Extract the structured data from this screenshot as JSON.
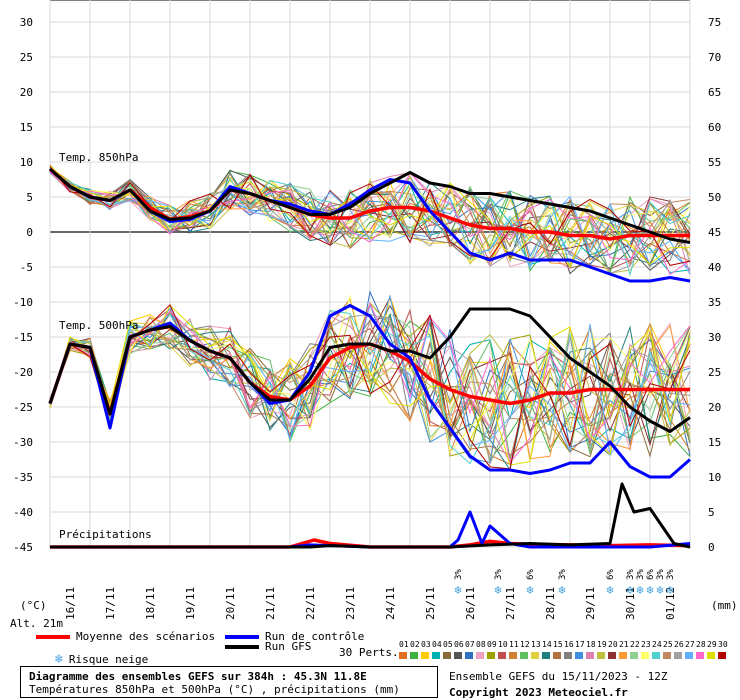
{
  "chart_data": {
    "type": "line",
    "title": "Diagramme des ensembles GEFS sur 384h : 45.3N 11.8E",
    "subtitle": "Températures 850hPa et 500hPa (°C) , précipitations (mm)",
    "altitude": "Alt. 21m",
    "left_unit": "(°C)",
    "right_unit": "(mm)",
    "left_ticks": [
      30,
      25,
      20,
      15,
      10,
      5,
      0,
      -5,
      -10,
      -15,
      -20,
      -25,
      -30,
      -35,
      -40,
      -45
    ],
    "right_ticks": [
      75,
      70,
      65,
      60,
      55,
      50,
      45,
      40,
      35,
      30,
      25,
      20,
      15,
      10,
      5,
      0
    ],
    "ylim": [
      -45,
      30
    ],
    "x_labels": [
      "16/11",
      "17/11",
      "18/11",
      "19/11",
      "20/11",
      "21/11",
      "22/11",
      "23/11",
      "24/11",
      "25/11",
      "26/11",
      "27/11",
      "28/11",
      "29/11",
      "30/11",
      "01/12"
    ],
    "panels": {
      "t850": "Temp. 850hPa",
      "t500": "Temp. 500hPa",
      "precip": "Précipitations"
    },
    "series": [
      {
        "name": "Moyenne des scénarios",
        "color": "#ff0000",
        "panel": "t850",
        "x": [
          0,
          0.5,
          1,
          1.5,
          2,
          2.5,
          3,
          3.5,
          4,
          4.5,
          5,
          5.5,
          6,
          6.5,
          7,
          7.5,
          8,
          8.5,
          9,
          9.5,
          10,
          10.5,
          11,
          11.5,
          12,
          12.5,
          13,
          13.5,
          14,
          14.5,
          15,
          15.5,
          16
        ],
        "values": [
          9,
          6.5,
          5,
          4.5,
          6,
          3.5,
          1.8,
          2.2,
          3,
          6,
          5.5,
          4.5,
          3.5,
          2.5,
          2,
          2,
          3,
          3.5,
          3.5,
          3,
          2,
          1,
          0.5,
          0.5,
          0,
          0,
          -0.5,
          -0.5,
          -1,
          -0.5,
          -0.5,
          -0.5,
          -0.5
        ]
      },
      {
        "name": "Run de contrôle",
        "color": "#0000ff",
        "panel": "t850",
        "x": [
          0,
          0.5,
          1,
          1.5,
          2,
          2.5,
          3,
          3.5,
          4,
          4.5,
          5,
          5.5,
          6,
          6.5,
          7,
          7.5,
          8,
          8.5,
          9,
          9.5,
          10,
          10.5,
          11,
          11.5,
          12,
          12.5,
          13,
          13.5,
          14,
          14.5,
          15,
          15.5,
          16
        ],
        "values": [
          9,
          6.5,
          5,
          4.5,
          6,
          3,
          1.5,
          1.8,
          3,
          6.5,
          5.5,
          4.5,
          4,
          3,
          2.5,
          4,
          6,
          7.5,
          7,
          3,
          0,
          -3,
          -4,
          -3,
          -4,
          -4,
          -4,
          -5,
          -6,
          -7,
          -7,
          -6.5,
          -7
        ]
      },
      {
        "name": "Run GFS",
        "color": "#000000",
        "panel": "t850",
        "x": [
          0,
          0.5,
          1,
          1.5,
          2,
          2.5,
          3,
          3.5,
          4,
          4.5,
          5,
          5.5,
          6,
          6.5,
          7,
          7.5,
          8,
          8.5,
          9,
          9.5,
          10,
          10.5,
          11,
          11.5,
          12,
          12.5,
          13,
          13.5,
          14,
          14.5,
          15,
          15.5,
          16
        ],
        "values": [
          9,
          6.5,
          5,
          4.5,
          6,
          3,
          1.8,
          2,
          3,
          6,
          5.5,
          4.5,
          3.5,
          2.5,
          2.5,
          3.5,
          5.5,
          7,
          8.5,
          7,
          6.5,
          5.5,
          5.5,
          5,
          4.5,
          4,
          3.5,
          3,
          2,
          1,
          0,
          -1,
          -1.5
        ]
      },
      {
        "name": "Moyenne des scénarios",
        "color": "#ff0000",
        "panel": "t500",
        "x": [
          0,
          0.5,
          1,
          1.5,
          2,
          2.5,
          3,
          3.5,
          4,
          4.5,
          5,
          5.5,
          6,
          6.5,
          7,
          7.5,
          8,
          8.5,
          9,
          9.5,
          10,
          10.5,
          11,
          11.5,
          12,
          12.5,
          13,
          13.5,
          14,
          14.5,
          15,
          15.5,
          16
        ],
        "values": [
          -24.5,
          -16,
          -16.5,
          -26,
          -15,
          -14,
          -13.5,
          -15.5,
          -17,
          -18,
          -21.5,
          -23.5,
          -24,
          -22,
          -18,
          -16.5,
          -16,
          -17,
          -18.5,
          -21,
          -22.5,
          -23.5,
          -24,
          -24.5,
          -24,
          -23,
          -23,
          -22.5,
          -22.5,
          -22.5,
          -22.5,
          -22.5,
          -22.5
        ]
      },
      {
        "name": "Run de contrôle",
        "color": "#0000ff",
        "panel": "t500",
        "x": [
          0,
          0.5,
          1,
          1.5,
          2,
          2.5,
          3,
          3.5,
          4,
          4.5,
          5,
          5.5,
          6,
          6.5,
          7,
          7.5,
          8,
          8.5,
          9,
          9.5,
          10,
          10.5,
          11,
          11.5,
          12,
          12.5,
          13,
          13.5,
          14,
          14.5,
          15,
          15.5,
          16
        ],
        "values": [
          -24.5,
          -16,
          -16.5,
          -28,
          -15,
          -14,
          -13,
          -15.5,
          -17,
          -18,
          -21.5,
          -24.5,
          -24,
          -20,
          -12,
          -10.5,
          -12,
          -16,
          -18,
          -24,
          -28,
          -32,
          -34,
          -34,
          -34.5,
          -34,
          -33,
          -33,
          -30,
          -33.5,
          -35,
          -35,
          -32.5
        ]
      },
      {
        "name": "Run GFS",
        "color": "#000000",
        "panel": "t500",
        "x": [
          0,
          0.5,
          1,
          1.5,
          2,
          2.5,
          3,
          3.5,
          4,
          4.5,
          5,
          5.5,
          6,
          6.5,
          7,
          7.5,
          8,
          8.5,
          9,
          9.5,
          10,
          10.5,
          11,
          11.5,
          12,
          12.5,
          13,
          13.5,
          14,
          14.5,
          15,
          15.5,
          16
        ],
        "values": [
          -24.5,
          -16,
          -16.5,
          -26,
          -15,
          -14,
          -13.5,
          -15.5,
          -17,
          -18,
          -21.5,
          -24,
          -24,
          -21,
          -16.5,
          -16,
          -16,
          -17,
          -17,
          -18,
          -15,
          -11,
          -11,
          -11,
          -12,
          -15,
          -18,
          -20,
          -22,
          -25,
          -27,
          -28.5,
          -26.5
        ]
      },
      {
        "name": "Moyenne des scénarios",
        "color": "#ff0000",
        "panel": "precip",
        "x": [
          0,
          1,
          2,
          3,
          4,
          5,
          6,
          6.3,
          6.6,
          7,
          8,
          9,
          10,
          10.5,
          11,
          11.5,
          12,
          13,
          14,
          15,
          16
        ],
        "values": [
          0,
          0,
          0,
          0,
          0,
          0,
          0,
          0.5,
          1,
          0.5,
          0,
          0,
          0,
          0.3,
          0.8,
          0.5,
          0.4,
          0.3,
          0.2,
          0.3,
          0.2
        ]
      },
      {
        "name": "Run de contrôle",
        "color": "#0000ff",
        "panel": "precip",
        "x": [
          0,
          1,
          2,
          3,
          4,
          5,
          6,
          6.5,
          7,
          8,
          9,
          10,
          10.2,
          10.5,
          10.8,
          11,
          11.5,
          12,
          13,
          14,
          15,
          16
        ],
        "values": [
          0,
          0,
          0,
          0,
          0,
          0,
          0,
          0.3,
          0.2,
          0,
          0,
          0,
          1,
          5,
          0.5,
          3,
          0.5,
          0,
          0,
          0,
          0,
          0.5
        ]
      },
      {
        "name": "Run GFS",
        "color": "#000000",
        "panel": "precip",
        "x": [
          0,
          1,
          2,
          3,
          4,
          5,
          6,
          6.5,
          7,
          8,
          9,
          10,
          11,
          12,
          13,
          14,
          14.3,
          14.6,
          15,
          15.3,
          15.6,
          16
        ],
        "values": [
          0,
          0,
          0,
          0,
          0,
          0,
          0,
          0,
          0.2,
          0,
          0,
          0,
          0.3,
          0.5,
          0.3,
          0.5,
          9,
          5,
          5.5,
          3,
          0.5,
          0
        ]
      }
    ],
    "snow_risk": [
      {
        "day_index": 10.2,
        "pct": "3%"
      },
      {
        "day_index": 11.2,
        "pct": "3%"
      },
      {
        "day_index": 12.0,
        "pct": "6%"
      },
      {
        "day_index": 12.8,
        "pct": "3%"
      },
      {
        "day_index": 14.0,
        "pct": "6%"
      },
      {
        "day_index": 14.5,
        "pct": "3%"
      },
      {
        "day_index": 14.75,
        "pct": "3%"
      },
      {
        "day_index": 15.0,
        "pct": "6%"
      },
      {
        "day_index": 15.25,
        "pct": "3%"
      },
      {
        "day_index": 15.5,
        "pct": "3%"
      }
    ],
    "grid": true
  },
  "legend": {
    "mean": "Moyenne des scénarios",
    "control": "Run de contrôle",
    "gfs": "Run GFS",
    "snow": "Risque neige",
    "perts_label": "30 Perts.",
    "pert_ids": [
      "01",
      "02",
      "03",
      "04",
      "05",
      "06",
      "07",
      "08",
      "09",
      "10",
      "11",
      "12",
      "13",
      "14",
      "15",
      "16",
      "17",
      "18",
      "19",
      "20",
      "21",
      "22",
      "23",
      "24",
      "25",
      "26",
      "27",
      "28",
      "29",
      "30"
    ],
    "pert_colors": [
      "#e07020",
      "#40b040",
      "#ffcc00",
      "#00b0b0",
      "#8a6a3a",
      "#555555",
      "#3070c0",
      "#f0a0c0",
      "#a0a000",
      "#c05050",
      "#d08030",
      "#60c060",
      "#e0d040",
      "#208080",
      "#b07040",
      "#808080",
      "#4090e0",
      "#e080b0",
      "#c0c040",
      "#903030",
      "#ff9933",
      "#90d090",
      "#ffff66",
      "#50d0d0",
      "#c08860",
      "#a0a0a0",
      "#60b0ff",
      "#ff66cc",
      "#e0e000",
      "#b00000"
    ]
  },
  "footer": {
    "title": "Diagramme des ensembles GEFS sur 384h : 45.3N 11.8E",
    "subtitle": "Températures 850hPa et 500hPa (°C) , précipitations (mm)",
    "ensemble": "Ensemble GEFS du 15/11/2023 - 12Z",
    "copyright": "Copyright 2023 Meteociel.fr"
  }
}
